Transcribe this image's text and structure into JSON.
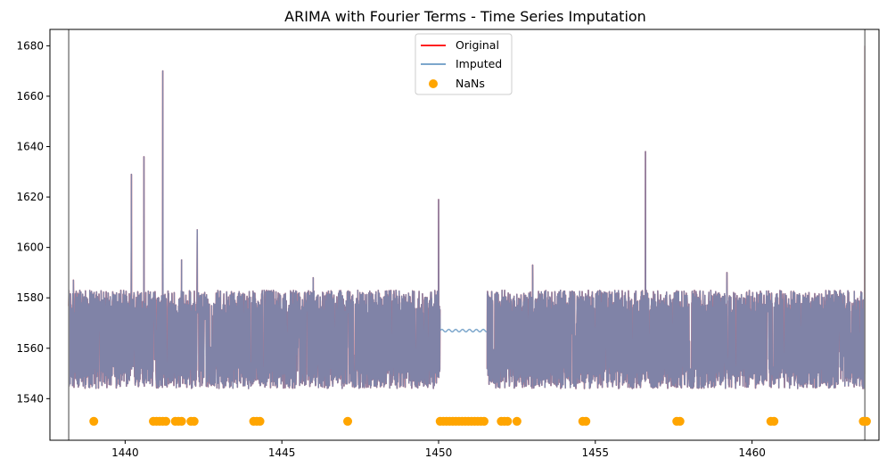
{
  "chart_data": {
    "type": "line",
    "title": "ARIMA with Fourier Terms - Time Series Imputation",
    "xlabel": "",
    "ylabel": "",
    "xlim": [
      1437.6,
      1464.05
    ],
    "ylim": [
      1523.5,
      1686.5
    ],
    "xticks": [
      1440,
      1445,
      1450,
      1455,
      1460
    ],
    "yticks": [
      1540,
      1560,
      1580,
      1600,
      1620,
      1640,
      1660,
      1680
    ],
    "grid": false,
    "legend_position": "upper center",
    "vertical_lines": [
      1438.2,
      1463.6
    ],
    "series": [
      {
        "name": "Original",
        "color": "#ff0000",
        "x_range": [
          1438.2,
          1463.6
        ],
        "baseline": 1564,
        "typical_low": 1545,
        "typical_high": 1585
      },
      {
        "name": "Imputed",
        "color": "#6a9ac4",
        "x_range": [
          1438.2,
          1463.6
        ],
        "baseline": 1564,
        "typical_low": 1545,
        "typical_high": 1585
      }
    ],
    "spikes": [
      {
        "x": 1438.35,
        "y": 1587
      },
      {
        "x": 1440.2,
        "y": 1629
      },
      {
        "x": 1440.6,
        "y": 1636
      },
      {
        "x": 1441.2,
        "y": 1670
      },
      {
        "x": 1441.8,
        "y": 1595
      },
      {
        "x": 1442.3,
        "y": 1607
      },
      {
        "x": 1446.0,
        "y": 1588
      },
      {
        "x": 1450.0,
        "y": 1619
      },
      {
        "x": 1453.0,
        "y": 1593
      },
      {
        "x": 1456.6,
        "y": 1638
      },
      {
        "x": 1459.2,
        "y": 1590
      },
      {
        "x": 1463.6,
        "y": 1680
      }
    ],
    "gap": {
      "x_start": 1450.05,
      "x_end": 1451.55,
      "imputed_level": 1567,
      "imputed_amplitude": 0.5
    },
    "nans": {
      "name": "NaNs",
      "color": "#ffa500",
      "y": 1531,
      "x": [
        1439.0,
        1440.9,
        1441.0,
        1441.1,
        1441.2,
        1441.3,
        1441.6,
        1441.7,
        1441.8,
        1442.1,
        1442.2,
        1444.1,
        1444.2,
        1444.3,
        1447.1,
        1450.05,
        1450.15,
        1450.25,
        1450.35,
        1450.45,
        1450.55,
        1450.65,
        1450.75,
        1450.85,
        1450.95,
        1451.05,
        1451.15,
        1451.25,
        1451.35,
        1451.45,
        1452.0,
        1452.1,
        1452.2,
        1452.5,
        1454.6,
        1454.7,
        1457.6,
        1457.7,
        1460.6,
        1460.7,
        1463.55,
        1463.65
      ]
    },
    "legend": [
      {
        "label": "Original",
        "kind": "line",
        "color": "#ff0000"
      },
      {
        "label": "Imputed",
        "kind": "line",
        "color": "#6a9ac4"
      },
      {
        "label": "NaNs",
        "kind": "marker",
        "color": "#ffa500"
      }
    ]
  }
}
